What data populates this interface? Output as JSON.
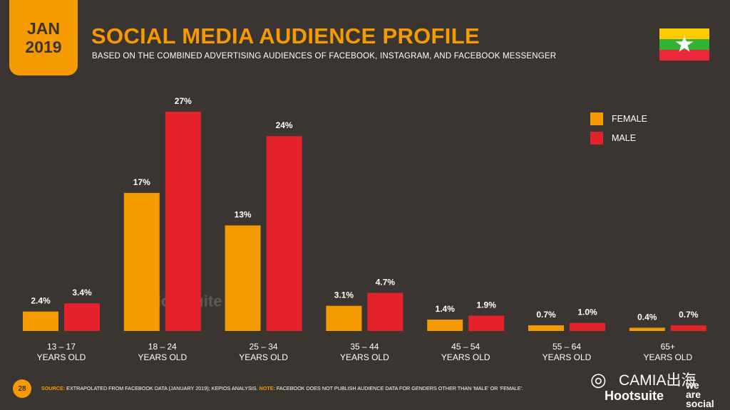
{
  "header": {
    "month": "JAN",
    "year": "2019",
    "title": "SOCIAL MEDIA AUDIENCE PROFILE",
    "subtitle": "BASED ON THE COMBINED ADVERTISING AUDIENCES OF FACEBOOK, INSTAGRAM, AND FACEBOOK MESSENGER"
  },
  "colors": {
    "female": "#f59a00",
    "male": "#e5222a",
    "background": "#3a3530",
    "accent": "#f59a00"
  },
  "flag": {
    "icon": "myanmar-flag-icon",
    "colors": [
      "#fecb00",
      "#34b233",
      "#ea2839"
    ]
  },
  "chart_data": {
    "type": "bar",
    "categories": [
      "13 – 17",
      "18 – 24",
      "25 – 34",
      "35 – 44",
      "45 – 54",
      "55 – 64",
      "65+"
    ],
    "category_sublabel": "YEARS OLD",
    "series": [
      {
        "name": "FEMALE",
        "values": [
          2.4,
          17,
          13,
          3.1,
          1.4,
          0.7,
          0.4
        ],
        "labels": [
          "2.4%",
          "17%",
          "13%",
          "3.1%",
          "1.4%",
          "0.7%",
          "0.4%"
        ]
      },
      {
        "name": "MALE",
        "values": [
          3.4,
          27,
          24,
          4.7,
          1.9,
          1.0,
          0.7
        ],
        "labels": [
          "3.4%",
          "27%",
          "24%",
          "4.7%",
          "1.9%",
          "1.0%",
          "0.7%"
        ]
      }
    ],
    "ylim": [
      0,
      27
    ],
    "grid": false,
    "legend": "top-right"
  },
  "watermark": {
    "brand": "Hootsuite",
    "we_are_social": [
      "we",
      "are",
      "social"
    ]
  },
  "footer": {
    "page_number": "28",
    "source_key": "SOURCE:",
    "source_text": " EXTRAPOLATED FROM FACEBOOK DATA (JANUARY 2019); KEPIOS ANALYSIS. ",
    "note_key": "NOTE:",
    "note_text": " FACEBOOK DOES NOT PUBLISH AUDIENCE DATA FOR GENDERS OTHER THAN 'MALE' OR 'FEMALE'."
  },
  "branding": {
    "name": "CAMIA出海",
    "hootsuite": "Hootsuite",
    "we_are_social": [
      "we",
      "are",
      "social"
    ]
  }
}
